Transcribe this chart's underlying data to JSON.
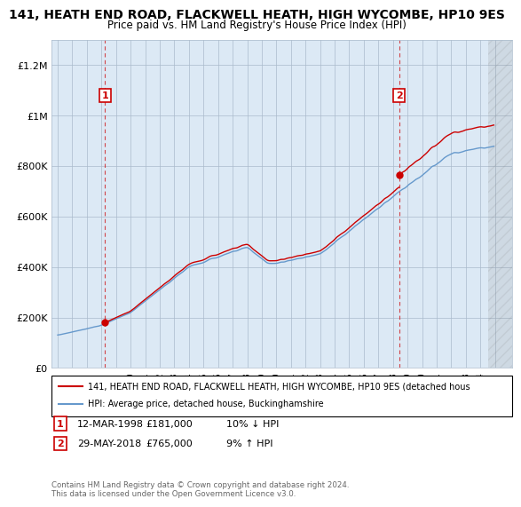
{
  "title": "141, HEATH END ROAD, FLACKWELL HEATH, HIGH WYCOMBE, HP10 9ES",
  "subtitle": "Price paid vs. HM Land Registry's House Price Index (HPI)",
  "sale1_date": "12-MAR-1998",
  "sale1_price": 181000,
  "sale1_label": "1",
  "sale1_note": "10% ↓ HPI",
  "sale2_date": "29-MAY-2018",
  "sale2_price": 765000,
  "sale2_label": "2",
  "sale2_note": "9% ↑ HPI",
  "legend_line1": "141, HEATH END ROAD, FLACKWELL HEATH, HIGH WYCOMBE, HP10 9ES (detached hous",
  "legend_line2": "HPI: Average price, detached house, Buckinghamshire",
  "copyright": "Contains HM Land Registry data © Crown copyright and database right 2024.\nThis data is licensed under the Open Government Licence v3.0.",
  "ylim": [
    0,
    1300000
  ],
  "yticks": [
    0,
    200000,
    400000,
    600000,
    800000,
    1000000,
    1200000
  ],
  "ytick_labels": [
    "£0",
    "£200K",
    "£400K",
    "£600K",
    "£800K",
    "£1M",
    "£1.2M"
  ],
  "red_color": "#cc0000",
  "blue_color": "#6699cc",
  "chart_bg": "#dce9f5",
  "background_color": "#ffffff",
  "grid_color": "#aabbcc"
}
